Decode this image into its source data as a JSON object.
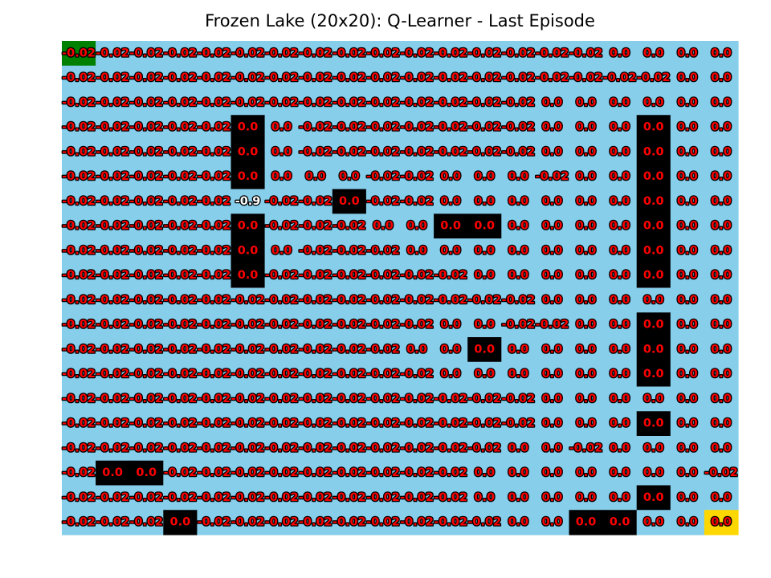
{
  "chart_data": {
    "type": "heatmap",
    "title": "Frozen Lake (20x20): Q-Learner - Last Episode",
    "rows": 20,
    "cols": 20,
    "colors": {
      "frozen": "#87ceeb",
      "hole": "#000000",
      "start": "#008000",
      "goal": "#ffd700",
      "label_fill": "#ff0000",
      "label_outline": "#000000",
      "label_fill_visited": "#ffffff",
      "label_outline_visited": "#000000"
    },
    "cell_kinds_legend": {
      "F": "frozen",
      "H": "hole",
      "S": "start",
      "G": "goal"
    },
    "cell_kinds": [
      "SFFFFFFFFFFFFFFFFFFF",
      "FFFFFFFFFFFFFFFFFFFF",
      "FFFFFFFFFFFFFFFFFFFF",
      "FFFFFHFFFFFFFFFFFHFF",
      "FFFFFHFFFFFFFFFFFHFF",
      "FFFFFHFFFFFFFFFFFHFF",
      "FFFFFFFFHFFFFFFFFHFF",
      "FFFFFHFFFFFHHFFFFHFF",
      "FFFFFHFFFFFFFFFFFHFF",
      "FFFFFHFFFFFFFFFFFHFF",
      "FFFFFFFFFFFFFFFFFFFF",
      "FFFFFFFFFFFFFFFFFHFF",
      "FFFFFFFFFFFFHFFFFHFF",
      "FFFFFFFFFFFFFFFFFHFF",
      "FFFFFFFFFFFFFFFFFFFF",
      "FFFFFFFFFFFFFFFFFHFF",
      "FFFFFFFFFFFFFFFFFFFF",
      "FHHFFFFFFFFFFFFFFFFF",
      "FFFFFFFFFFFFFFFFFHFF",
      "FFFHFFFFFFFFFFFHHFFG"
    ],
    "values": [
      [
        "-0.02",
        "-0.02",
        "-0.02",
        "-0.02",
        "-0.02",
        "-0.02",
        "-0.02",
        "-0.02",
        "-0.02",
        "-0.02",
        "-0.02",
        "-0.02",
        "-0.02",
        "-0.02",
        "-0.02",
        "-0.02",
        "0.0",
        "0.0",
        "0.0",
        "0.0"
      ],
      [
        "-0.02",
        "-0.02",
        "-0.02",
        "-0.02",
        "-0.02",
        "-0.02",
        "-0.02",
        "-0.02",
        "-0.02",
        "-0.02",
        "-0.02",
        "-0.02",
        "-0.02",
        "-0.02",
        "-0.02",
        "-0.02",
        "-0.02",
        "-0.02",
        "0.0",
        "0.0"
      ],
      [
        "-0.02",
        "-0.02",
        "-0.02",
        "-0.02",
        "-0.02",
        "-0.02",
        "-0.02",
        "-0.02",
        "-0.02",
        "-0.02",
        "-0.02",
        "-0.02",
        "-0.02",
        "-0.02",
        "0.0",
        "0.0",
        "0.0",
        "0.0",
        "0.0",
        "0.0"
      ],
      [
        "-0.02",
        "-0.02",
        "-0.02",
        "-0.02",
        "-0.02",
        "0.0",
        "0.0",
        "-0.02",
        "-0.02",
        "-0.02",
        "-0.02",
        "-0.02",
        "-0.02",
        "-0.02",
        "0.0",
        "0.0",
        "0.0",
        "0.0",
        "0.0",
        "0.0"
      ],
      [
        "-0.02",
        "-0.02",
        "-0.02",
        "-0.02",
        "-0.02",
        "0.0",
        "0.0",
        "-0.02",
        "-0.02",
        "-0.02",
        "-0.02",
        "-0.02",
        "-0.02",
        "-0.02",
        "0.0",
        "0.0",
        "0.0",
        "0.0",
        "0.0",
        "0.0"
      ],
      [
        "-0.02",
        "-0.02",
        "-0.02",
        "-0.02",
        "-0.02",
        "0.0",
        "0.0",
        "0.0",
        "0.0",
        "-0.02",
        "-0.02",
        "0.0",
        "0.0",
        "0.0",
        "-0.02",
        "0.0",
        "0.0",
        "0.0",
        "0.0",
        "0.0"
      ],
      [
        "-0.02",
        "-0.02",
        "-0.02",
        "-0.02",
        "-0.02",
        "-0.9",
        "-0.02",
        "-0.02",
        "0.0",
        "-0.02",
        "-0.02",
        "0.0",
        "0.0",
        "0.0",
        "0.0",
        "0.0",
        "0.0",
        "0.0",
        "0.0",
        "0.0"
      ],
      [
        "-0.02",
        "-0.02",
        "-0.02",
        "-0.02",
        "-0.02",
        "0.0",
        "-0.02",
        "-0.02",
        "-0.02",
        "0.0",
        "0.0",
        "0.0",
        "0.0",
        "0.0",
        "0.0",
        "0.0",
        "0.0",
        "0.0",
        "0.0",
        "0.0"
      ],
      [
        "-0.02",
        "-0.02",
        "-0.02",
        "-0.02",
        "-0.02",
        "0.0",
        "0.0",
        "-0.02",
        "-0.02",
        "-0.02",
        "0.0",
        "0.0",
        "0.0",
        "0.0",
        "0.0",
        "0.0",
        "0.0",
        "0.0",
        "0.0",
        "0.0"
      ],
      [
        "-0.02",
        "-0.02",
        "-0.02",
        "-0.02",
        "-0.02",
        "0.0",
        "-0.02",
        "-0.02",
        "-0.02",
        "-0.02",
        "-0.02",
        "-0.02",
        "0.0",
        "0.0",
        "0.0",
        "0.0",
        "0.0",
        "0.0",
        "0.0",
        "0.0"
      ],
      [
        "-0.02",
        "-0.02",
        "-0.02",
        "-0.02",
        "-0.02",
        "-0.02",
        "-0.02",
        "-0.02",
        "-0.02",
        "-0.02",
        "-0.02",
        "-0.02",
        "-0.02",
        "-0.02",
        "0.0",
        "0.0",
        "0.0",
        "0.0",
        "0.0",
        "0.0"
      ],
      [
        "-0.02",
        "-0.02",
        "-0.02",
        "-0.02",
        "-0.02",
        "-0.02",
        "-0.02",
        "-0.02",
        "-0.02",
        "-0.02",
        "-0.02",
        "0.0",
        "0.0",
        "-0.02",
        "-0.02",
        "0.0",
        "0.0",
        "0.0",
        "0.0",
        "0.0"
      ],
      [
        "-0.02",
        "-0.02",
        "-0.02",
        "-0.02",
        "-0.02",
        "-0.02",
        "-0.02",
        "-0.02",
        "-0.02",
        "-0.02",
        "0.0",
        "0.0",
        "0.0",
        "0.0",
        "0.0",
        "0.0",
        "0.0",
        "0.0",
        "0.0",
        "0.0"
      ],
      [
        "-0.02",
        "-0.02",
        "-0.02",
        "-0.02",
        "-0.02",
        "-0.02",
        "-0.02",
        "-0.02",
        "-0.02",
        "-0.02",
        "-0.02",
        "0.0",
        "0.0",
        "0.0",
        "0.0",
        "0.0",
        "0.0",
        "0.0",
        "0.0",
        "0.0"
      ],
      [
        "-0.02",
        "-0.02",
        "-0.02",
        "-0.02",
        "-0.02",
        "-0.02",
        "-0.02",
        "-0.02",
        "-0.02",
        "-0.02",
        "-0.02",
        "-0.02",
        "-0.02",
        "-0.02",
        "0.0",
        "0.0",
        "0.0",
        "0.0",
        "0.0",
        "0.0"
      ],
      [
        "-0.02",
        "-0.02",
        "-0.02",
        "-0.02",
        "-0.02",
        "-0.02",
        "-0.02",
        "-0.02",
        "-0.02",
        "-0.02",
        "-0.02",
        "-0.02",
        "-0.02",
        "-0.02",
        "0.0",
        "0.0",
        "0.0",
        "0.0",
        "0.0",
        "0.0"
      ],
      [
        "-0.02",
        "-0.02",
        "-0.02",
        "-0.02",
        "-0.02",
        "-0.02",
        "-0.02",
        "-0.02",
        "-0.02",
        "-0.02",
        "-0.02",
        "-0.02",
        "-0.02",
        "0.0",
        "0.0",
        "-0.02",
        "0.0",
        "0.0",
        "0.0",
        "0.0"
      ],
      [
        "-0.02",
        "0.0",
        "0.0",
        "-0.02",
        "-0.02",
        "-0.02",
        "-0.02",
        "-0.02",
        "-0.02",
        "-0.02",
        "-0.02",
        "-0.02",
        "0.0",
        "0.0",
        "0.0",
        "0.0",
        "0.0",
        "0.0",
        "0.0",
        "-0.02"
      ],
      [
        "-0.02",
        "-0.02",
        "-0.02",
        "-0.02",
        "-0.02",
        "-0.02",
        "-0.02",
        "-0.02",
        "-0.02",
        "-0.02",
        "-0.02",
        "-0.02",
        "0.0",
        "0.0",
        "0.0",
        "0.0",
        "0.0",
        "0.0",
        "0.0",
        "0.0"
      ],
      [
        "-0.02",
        "-0.02",
        "-0.02",
        "0.0",
        "-0.02",
        "-0.02",
        "-0.02",
        "-0.02",
        "-0.02",
        "-0.02",
        "-0.02",
        "-0.02",
        "-0.02",
        "0.0",
        "0.0",
        "0.0",
        "0.0",
        "0.0",
        "0.0",
        "0.0"
      ]
    ],
    "visited_cells": [
      [
        6,
        5
      ]
    ],
    "grid": false,
    "axes_visible": false
  }
}
